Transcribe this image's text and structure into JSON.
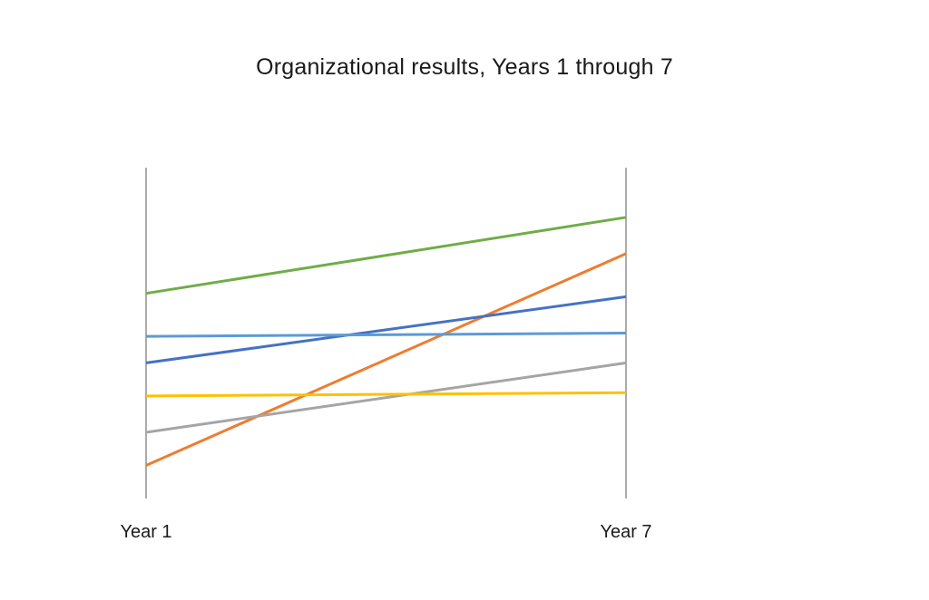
{
  "chart_data": {
    "type": "line",
    "title": "Organizational results, Years 1 through 7",
    "xlabel": "",
    "ylabel": "",
    "categories": [
      "Year 1",
      "Year 7"
    ],
    "ylim": [
      0,
      100
    ],
    "grid": false,
    "legend": "none",
    "series": [
      {
        "color": "#70ad47",
        "values": [
          62,
          85
        ]
      },
      {
        "color": "#ed7d31",
        "values": [
          10,
          74
        ]
      },
      {
        "color": "#4472c4",
        "values": [
          41,
          61
        ]
      },
      {
        "color": "#5b9bd5",
        "values": [
          49,
          50
        ]
      },
      {
        "color": "#a5a5a5",
        "values": [
          20,
          41
        ]
      },
      {
        "color": "#ffc000",
        "values": [
          31,
          32
        ]
      }
    ]
  }
}
